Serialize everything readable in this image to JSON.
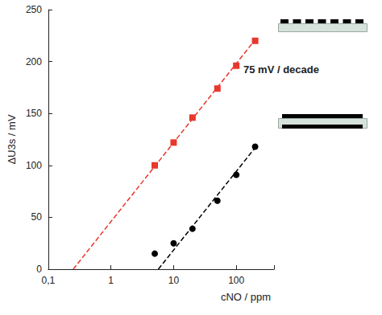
{
  "chart_data": {
    "type": "scatter",
    "xlabel": "cNO / ppm",
    "ylabel": "ΔU3s / mV",
    "annotations": [
      "75 mV / decade"
    ],
    "log": "x",
    "grid": false,
    "xlim": [
      0.1,
      400
    ],
    "xticks": [
      {
        "value": 0.1,
        "label": "0,1"
      },
      1,
      10,
      100
    ],
    "ylim": [
      0,
      250
    ],
    "yticks": [
      0,
      50,
      100,
      150,
      200,
      250
    ],
    "series": [
      {
        "type": "scatter",
        "color": "#e8372c",
        "marker": "square",
        "x": [
          5,
          10,
          20,
          50,
          100,
          200
        ],
        "values": [
          100,
          122,
          146,
          174,
          196,
          220
        ]
      },
      {
        "type": "line",
        "color": "#e8372c",
        "line_style": "dashed",
        "x": [
          0.25,
          200
        ],
        "values": [
          0,
          221
        ]
      },
      {
        "type": "scatter",
        "color": "#000000",
        "marker": "circle",
        "x": [
          5,
          10,
          20,
          50,
          100,
          200
        ],
        "values": [
          15,
          25,
          39,
          66,
          91,
          118
        ]
      },
      {
        "type": "line",
        "color": "#000000",
        "line_style": "dashed",
        "x": [
          5.7,
          200
        ],
        "values": [
          0,
          117
        ]
      }
    ]
  }
}
